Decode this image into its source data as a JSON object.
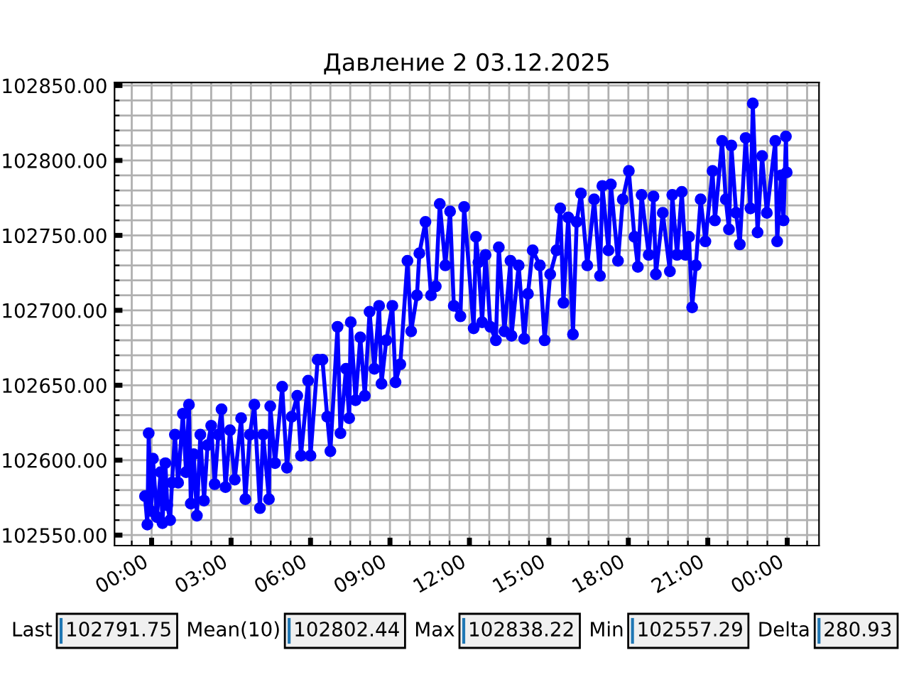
{
  "chart_data": {
    "type": "line",
    "title": "Давление 2 03.12.2025",
    "x": [
      -0.25,
      -0.16,
      -0.11,
      -0.02,
      0.05,
      0.2,
      0.34,
      0.41,
      0.52,
      0.59,
      0.7,
      0.77,
      0.88,
      1.0,
      1.18,
      1.3,
      1.41,
      1.48,
      1.59,
      1.71,
      1.84,
      1.98,
      2.11,
      2.25,
      2.38,
      2.52,
      2.64,
      2.79,
      2.96,
      3.14,
      3.38,
      3.54,
      3.71,
      3.88,
      4.09,
      4.21,
      4.43,
      4.48,
      4.66,
      4.93,
      5.11,
      5.29,
      5.5,
      5.64,
      5.91,
      6.0,
      6.27,
      6.45,
      6.63,
      6.75,
      7.02,
      7.13,
      7.34,
      7.46,
      7.52,
      7.7,
      7.88,
      8.05,
      8.23,
      8.41,
      8.59,
      8.68,
      8.86,
      9.09,
      9.21,
      9.39,
      9.66,
      9.8,
      10.02,
      10.11,
      10.34,
      10.55,
      10.73,
      10.88,
      11.09,
      11.27,
      11.41,
      11.66,
      11.8,
      12.16,
      12.25,
      12.34,
      12.48,
      12.61,
      12.79,
      13.0,
      13.11,
      13.32,
      13.55,
      13.59,
      13.86,
      14.07,
      14.21,
      14.39,
      14.66,
      14.84,
      15.05,
      15.29,
      15.43,
      15.55,
      15.73,
      15.91,
      16.05,
      16.21,
      16.45,
      16.71,
      16.93,
      17.02,
      17.25,
      17.34,
      17.61,
      17.79,
      18.02,
      18.23,
      18.36,
      18.5,
      18.77,
      18.95,
      19.04,
      19.3,
      19.57,
      19.66,
      19.84,
      20.02,
      20.16,
      20.29,
      20.41,
      20.55,
      20.73,
      20.91,
      21.18,
      21.27,
      21.54,
      21.68,
      21.8,
      21.89,
      22.07,
      22.21,
      22.43,
      22.61,
      22.7,
      22.88,
      23.05,
      23.23,
      23.55,
      23.62,
      23.77,
      23.86,
      23.95,
      23.98
    ],
    "series": [
      {
        "color": "#0000ff",
        "values": [
          102576,
          102557,
          102618,
          102566,
          102601,
          102562,
          102592,
          102558,
          102598,
          102570,
          102560,
          102585,
          102617,
          102585,
          102631,
          102592,
          102637,
          102571,
          102604,
          102563,
          102617,
          102573,
          102610,
          102623,
          102584,
          102617,
          102634,
          102582,
          102620,
          102587,
          102628,
          102574,
          102617,
          102637,
          102568,
          102617,
          102574,
          102636,
          102598,
          102649,
          102595,
          102629,
          102643,
          102603,
          102653,
          102603,
          102667,
          102667,
          102629,
          102606,
          102689,
          102618,
          102661,
          102628,
          102692,
          102640,
          102682,
          102643,
          102699,
          102661,
          102703,
          102651,
          102680,
          102703,
          102652,
          102664,
          102733,
          102686,
          102710,
          102738,
          102759,
          102710,
          102716,
          102771,
          102730,
          102766,
          102703,
          102696,
          102769,
          102688,
          102749,
          102732,
          102692,
          102737,
          102689,
          102680,
          102742,
          102686,
          102733,
          102683,
          102730,
          102681,
          102711,
          102740,
          102730,
          102680,
          102724,
          102740,
          102768,
          102705,
          102762,
          102684,
          102759,
          102778,
          102730,
          102774,
          102723,
          102783,
          102740,
          102784,
          102733,
          102774,
          102793,
          102749,
          102729,
          102777,
          102737,
          102776,
          102724,
          102765,
          102726,
          102777,
          102737,
          102779,
          102737,
          102749,
          102702,
          102730,
          102774,
          102746,
          102793,
          102760,
          102813,
          102774,
          102754,
          102810,
          102765,
          102744,
          102815,
          102768,
          102838,
          102752,
          102803,
          102765,
          102813,
          102746,
          102790,
          102760,
          102816,
          102792
        ]
      }
    ],
    "xlim": [
      -1.4,
      25.2
    ],
    "xticks": [
      {
        "value": -0.75,
        "label": null
      },
      {
        "value": 0,
        "label": "00:00"
      },
      {
        "value": 0.75,
        "label": null
      },
      {
        "value": 1.5,
        "label": null
      },
      {
        "value": 2.25,
        "label": null
      },
      {
        "value": 3,
        "label": "03:00"
      },
      {
        "value": 3.75,
        "label": null
      },
      {
        "value": 4.5,
        "label": null
      },
      {
        "value": 5.25,
        "label": null
      },
      {
        "value": 6,
        "label": "06:00"
      },
      {
        "value": 6.75,
        "label": null
      },
      {
        "value": 7.5,
        "label": null
      },
      {
        "value": 8.25,
        "label": null
      },
      {
        "value": 9,
        "label": "09:00"
      },
      {
        "value": 9.75,
        "label": null
      },
      {
        "value": 10.5,
        "label": null
      },
      {
        "value": 11.25,
        "label": null
      },
      {
        "value": 12,
        "label": "12:00"
      },
      {
        "value": 12.75,
        "label": null
      },
      {
        "value": 13.5,
        "label": null
      },
      {
        "value": 14.25,
        "label": null
      },
      {
        "value": 15,
        "label": "15:00"
      },
      {
        "value": 15.75,
        "label": null
      },
      {
        "value": 16.5,
        "label": null
      },
      {
        "value": 17.25,
        "label": null
      },
      {
        "value": 18,
        "label": "18:00"
      },
      {
        "value": 18.75,
        "label": null
      },
      {
        "value": 19.5,
        "label": null
      },
      {
        "value": 20.25,
        "label": null
      },
      {
        "value": 21,
        "label": "21:00"
      },
      {
        "value": 21.75,
        "label": null
      },
      {
        "value": 22.5,
        "label": null
      },
      {
        "value": 23.25,
        "label": null
      },
      {
        "value": 24,
        "label": "00:00"
      },
      {
        "value": 24.75,
        "label": null
      }
    ],
    "ylim": [
      102543,
      102852
    ],
    "yticks": [
      {
        "value": 102550,
        "label": "102550.00"
      },
      {
        "value": 102560,
        "label": null
      },
      {
        "value": 102570,
        "label": null
      },
      {
        "value": 102580,
        "label": null
      },
      {
        "value": 102590,
        "label": null
      },
      {
        "value": 102600,
        "label": "102600.00"
      },
      {
        "value": 102610,
        "label": null
      },
      {
        "value": 102620,
        "label": null
      },
      {
        "value": 102630,
        "label": null
      },
      {
        "value": 102640,
        "label": null
      },
      {
        "value": 102650,
        "label": "102650.00"
      },
      {
        "value": 102660,
        "label": null
      },
      {
        "value": 102670,
        "label": null
      },
      {
        "value": 102680,
        "label": null
      },
      {
        "value": 102690,
        "label": null
      },
      {
        "value": 102700,
        "label": "102700.00"
      },
      {
        "value": 102710,
        "label": null
      },
      {
        "value": 102720,
        "label": null
      },
      {
        "value": 102730,
        "label": null
      },
      {
        "value": 102740,
        "label": null
      },
      {
        "value": 102750,
        "label": "102750.00"
      },
      {
        "value": 102760,
        "label": null
      },
      {
        "value": 102770,
        "label": null
      },
      {
        "value": 102780,
        "label": null
      },
      {
        "value": 102790,
        "label": null
      },
      {
        "value": 102800,
        "label": "102800.00"
      },
      {
        "value": 102810,
        "label": null
      },
      {
        "value": 102820,
        "label": null
      },
      {
        "value": 102830,
        "label": null
      },
      {
        "value": 102840,
        "label": null
      },
      {
        "value": 102850,
        "label": "102850.00"
      }
    ],
    "grid": true,
    "marker": "circle",
    "line_style": "solid",
    "annotations": [
      "Last",
      "102791.75",
      "Mean(10)",
      "102802.44",
      "Max",
      "102838.22",
      "Min",
      "102557.29",
      "Delta",
      "280.93"
    ]
  }
}
